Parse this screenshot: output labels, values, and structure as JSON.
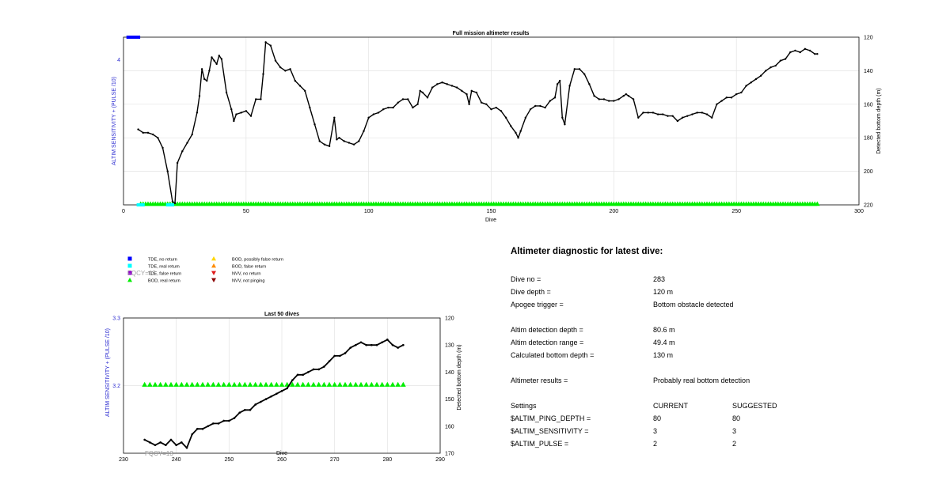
{
  "chart_data": [
    {
      "type": "line",
      "title": "Full mission altimeter results",
      "xlabel": "Dive",
      "ylabel_left": "ALTIM SENSITIVITY + (PULSE /10)",
      "ylabel_right": "Detected bottom depth (m)",
      "xlim": [
        0,
        300
      ],
      "xticks": [
        0,
        50,
        100,
        150,
        200,
        250,
        300
      ],
      "ylim_left": [
        2.7,
        4.2
      ],
      "yticks_left": [
        4
      ],
      "ylim_right": [
        220,
        120
      ],
      "yticks_right": [
        120,
        140,
        160,
        180,
        200,
        220
      ],
      "grid": true,
      "series": [
        {
          "name": "Detected bottom depth",
          "axis": "right",
          "x": [
            6,
            8,
            10,
            12,
            14,
            16,
            18,
            20,
            21,
            22,
            24,
            26,
            28,
            30,
            31,
            32,
            33,
            34,
            35,
            36,
            37,
            38,
            39,
            40,
            42,
            44,
            45,
            46,
            48,
            50,
            52,
            54,
            56,
            57,
            58,
            60,
            62,
            64,
            66,
            68,
            70,
            72,
            74,
            76,
            78,
            80,
            82,
            84,
            86,
            87,
            88,
            90,
            92,
            94,
            96,
            98,
            100,
            102,
            104,
            106,
            108,
            110,
            112,
            114,
            116,
            118,
            120,
            121,
            122,
            124,
            126,
            128,
            130,
            132,
            134,
            136,
            138,
            140,
            141,
            142,
            144,
            146,
            148,
            150,
            152,
            154,
            156,
            158,
            160,
            161,
            162,
            164,
            166,
            168,
            170,
            172,
            174,
            176,
            177,
            178,
            179,
            180,
            182,
            184,
            186,
            188,
            190,
            192,
            194,
            196,
            198,
            200,
            202,
            204,
            205,
            206,
            208,
            210,
            212,
            214,
            216,
            218,
            220,
            222,
            224,
            226,
            228,
            230,
            232,
            234,
            236,
            238,
            240,
            242,
            244,
            246,
            248,
            250,
            252,
            254,
            256,
            258,
            260,
            262,
            264,
            266,
            268,
            270,
            272,
            274,
            276,
            278,
            280,
            282,
            283
          ],
          "y": [
            175,
            177,
            177,
            178,
            180,
            186,
            200,
            218,
            219,
            195,
            188,
            183,
            178,
            165,
            155,
            139,
            145,
            146,
            140,
            132,
            134,
            136,
            131,
            133,
            153,
            163,
            170,
            166,
            165,
            164,
            167,
            157,
            157,
            142,
            123,
            125,
            134,
            138,
            140,
            139,
            146,
            149,
            152,
            162,
            172,
            182,
            184,
            185,
            168,
            181,
            180,
            182,
            183,
            184,
            182,
            176,
            168,
            166,
            165,
            163,
            162,
            162,
            159,
            157,
            157,
            162,
            160,
            152,
            153,
            156,
            150,
            148,
            147,
            148,
            149,
            150,
            152,
            154,
            160,
            152,
            153,
            159,
            160,
            163,
            162,
            164,
            168,
            173,
            177,
            180,
            176,
            168,
            163,
            161,
            161,
            162,
            158,
            156,
            148,
            146,
            168,
            172,
            149,
            139,
            139,
            142,
            148,
            155,
            157,
            157,
            158,
            158,
            157,
            155,
            154,
            155,
            157,
            168,
            165,
            165,
            165,
            166,
            166,
            167,
            167,
            170,
            168,
            167,
            166,
            165,
            165,
            166,
            168,
            160,
            158,
            156,
            156,
            154,
            153,
            149,
            147,
            145,
            143,
            140,
            138,
            137,
            134,
            133,
            129,
            128,
            129,
            127,
            128,
            130,
            130
          ]
        },
        {
          "name": "BOD, real return",
          "axis": "left",
          "x_range": [
            7,
            283
          ],
          "y": 2.7
        },
        {
          "name": "TDE, real return",
          "axis": "left",
          "x": [
            6,
            7,
            8,
            18,
            19,
            20
          ],
          "y": 2.7
        },
        {
          "name": "TDE, no return",
          "axis": "left",
          "x": [
            2,
            3,
            4,
            5,
            6
          ],
          "y": 4.2
        }
      ]
    },
    {
      "type": "line",
      "title": "Last 50 dives",
      "xlabel": "Dive",
      "ylabel_left": "ALTIM SENSITIVITY + (PULSE /10)",
      "ylabel_right": "Detected bottom depth (m)",
      "xlim": [
        230,
        290
      ],
      "xticks": [
        230,
        240,
        250,
        260,
        270,
        280,
        290
      ],
      "ylim_left": [
        3.1,
        3.3
      ],
      "yticks_left": [
        3.2,
        3.3
      ],
      "ylim_right": [
        170,
        120
      ],
      "yticks_right": [
        120,
        130,
        140,
        150,
        160,
        170
      ],
      "grid": true,
      "series": [
        {
          "name": "Detected bottom depth",
          "axis": "right",
          "x": [
            234,
            235,
            236,
            237,
            238,
            239,
            240,
            241,
            242,
            243,
            244,
            245,
            246,
            247,
            248,
            249,
            250,
            251,
            252,
            253,
            254,
            255,
            256,
            257,
            258,
            259,
            260,
            261,
            262,
            263,
            264,
            265,
            266,
            267,
            268,
            269,
            270,
            271,
            272,
            273,
            274,
            275,
            276,
            277,
            278,
            279,
            280,
            281,
            282,
            283
          ],
          "y": [
            165,
            166,
            167,
            166,
            167,
            165,
            167,
            166,
            168,
            163,
            161,
            161,
            160,
            159,
            159,
            158,
            158,
            157,
            155,
            154,
            154,
            152,
            151,
            150,
            149,
            148,
            147,
            146,
            143,
            141,
            141,
            140,
            139,
            139,
            138,
            136,
            134,
            134,
            133,
            131,
            130,
            129,
            130,
            130,
            130,
            129,
            128,
            130,
            131,
            130
          ]
        },
        {
          "name": "BOD, real return",
          "axis": "left",
          "x_range": [
            234,
            283
          ],
          "y": 3.2
        }
      ]
    }
  ],
  "legend": {
    "items": [
      {
        "label": "TDE, no return",
        "color": "#0000ff",
        "icon": "square-icon"
      },
      {
        "label": "TDE, real return",
        "color": "#00ffff",
        "icon": "square-icon"
      },
      {
        "label": "TDE, false return",
        "color": "#9400d3",
        "icon": "square-icon"
      },
      {
        "label": "BOD, real return",
        "color": "#00ee00",
        "icon": "triangle-up-icon"
      },
      {
        "label": "BOD, possibly false return",
        "color": "#ffd700",
        "icon": "triangle-up-icon"
      },
      {
        "label": "BOD, false return",
        "color": "#ff8c00",
        "icon": "triangle-up-icon"
      },
      {
        "label": "NVV, no return",
        "color": "#e01b1b",
        "icon": "triangle-down-icon"
      },
      {
        "label": "NVV, not pinging",
        "color": "#8b0000",
        "icon": "triangle-down-icon"
      }
    ]
  },
  "fqcy_label": "FQCY=13",
  "colors": {
    "line": "#000000",
    "axis_left": "#2a2ad0",
    "bod_real": "#00ee00",
    "tde_real": "#00ffff",
    "tde_no": "#0000ff",
    "fqcy": "#999999"
  },
  "diagnostic": {
    "title": "Altimeter diagnostic for latest dive:",
    "dive_no_label": "Dive no =",
    "dive_no_value": "283",
    "dive_depth_label": "Dive depth =",
    "dive_depth_value": "120 m",
    "apogee_label": "Apogee trigger =",
    "apogee_value": "Bottom obstacle detected",
    "det_depth_label": "Altim detection depth =",
    "det_depth_value": "80.6 m",
    "det_range_label": "Altim detection range =",
    "det_range_value": "49.4 m",
    "calc_depth_label": "Calculated bottom depth =",
    "calc_depth_value": "130 m",
    "results_label": "Altimeter results =",
    "results_value": "Probably real bottom detection",
    "settings_label": "Settings",
    "current_header": "CURRENT",
    "suggested_header": "SUGGESTED",
    "settings": [
      {
        "name": "$ALTIM_PING_DEPTH =",
        "current": "80",
        "suggested": "80"
      },
      {
        "name": "$ALTIM_SENSITIVITY =",
        "current": "3",
        "suggested": "3"
      },
      {
        "name": "$ALTIM_PULSE =",
        "current": "2",
        "suggested": "2"
      }
    ]
  }
}
